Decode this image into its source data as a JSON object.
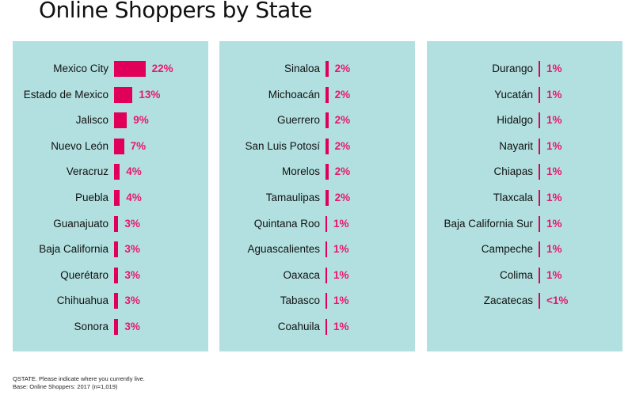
{
  "chart_data": {
    "type": "bar",
    "orientation": "horizontal",
    "title": "Online Shoppers by State",
    "colors": {
      "bar": "#e0005a",
      "label": "#e8176a",
      "panel": "#b2e0e0"
    },
    "panels": [
      {
        "categories": [
          "Mexico City",
          "Estado de Mexico",
          "Jalisco",
          "Nuevo León",
          "Veracruz",
          "Puebla",
          "Guanajuato",
          "Baja California",
          "Querétaro",
          "Chihuahua",
          "Sonora"
        ],
        "values": [
          22,
          13,
          9,
          7,
          4,
          4,
          3,
          3,
          3,
          3,
          3
        ],
        "labels": [
          "22%",
          "13%",
          "9%",
          "7%",
          "4%",
          "4%",
          "3%",
          "3%",
          "3%",
          "3%",
          "3%"
        ]
      },
      {
        "categories": [
          "Sinaloa",
          "Michoacán",
          "Guerrero",
          "San Luis Potosí",
          "Morelos",
          "Tamaulipas",
          "Quintana Roo",
          "Aguascalientes",
          "Oaxaca",
          "Tabasco",
          "Coahuila"
        ],
        "values": [
          2,
          2,
          2,
          2,
          2,
          2,
          1,
          1,
          1,
          1,
          1
        ],
        "labels": [
          "2%",
          "2%",
          "2%",
          "2%",
          "2%",
          "2%",
          "1%",
          "1%",
          "1%",
          "1%",
          "1%"
        ]
      },
      {
        "categories": [
          "Durango",
          "Yucatán",
          "Hidalgo",
          "Nayarit",
          "Chiapas",
          "Tlaxcala",
          "Baja California Sur",
          "Campeche",
          "Colima",
          "Zacatecas"
        ],
        "values": [
          1,
          1,
          1,
          1,
          1,
          1,
          1,
          1,
          1,
          0.5
        ],
        "labels": [
          "1%",
          "1%",
          "1%",
          "1%",
          "1%",
          "1%",
          "1%",
          "1%",
          "1%",
          "<1%"
        ]
      }
    ]
  },
  "footer": {
    "question": "QSTATE. Please indicate where you currently live.",
    "base": "Base: Online Shoppers: 2017 (n=1,019)"
  }
}
